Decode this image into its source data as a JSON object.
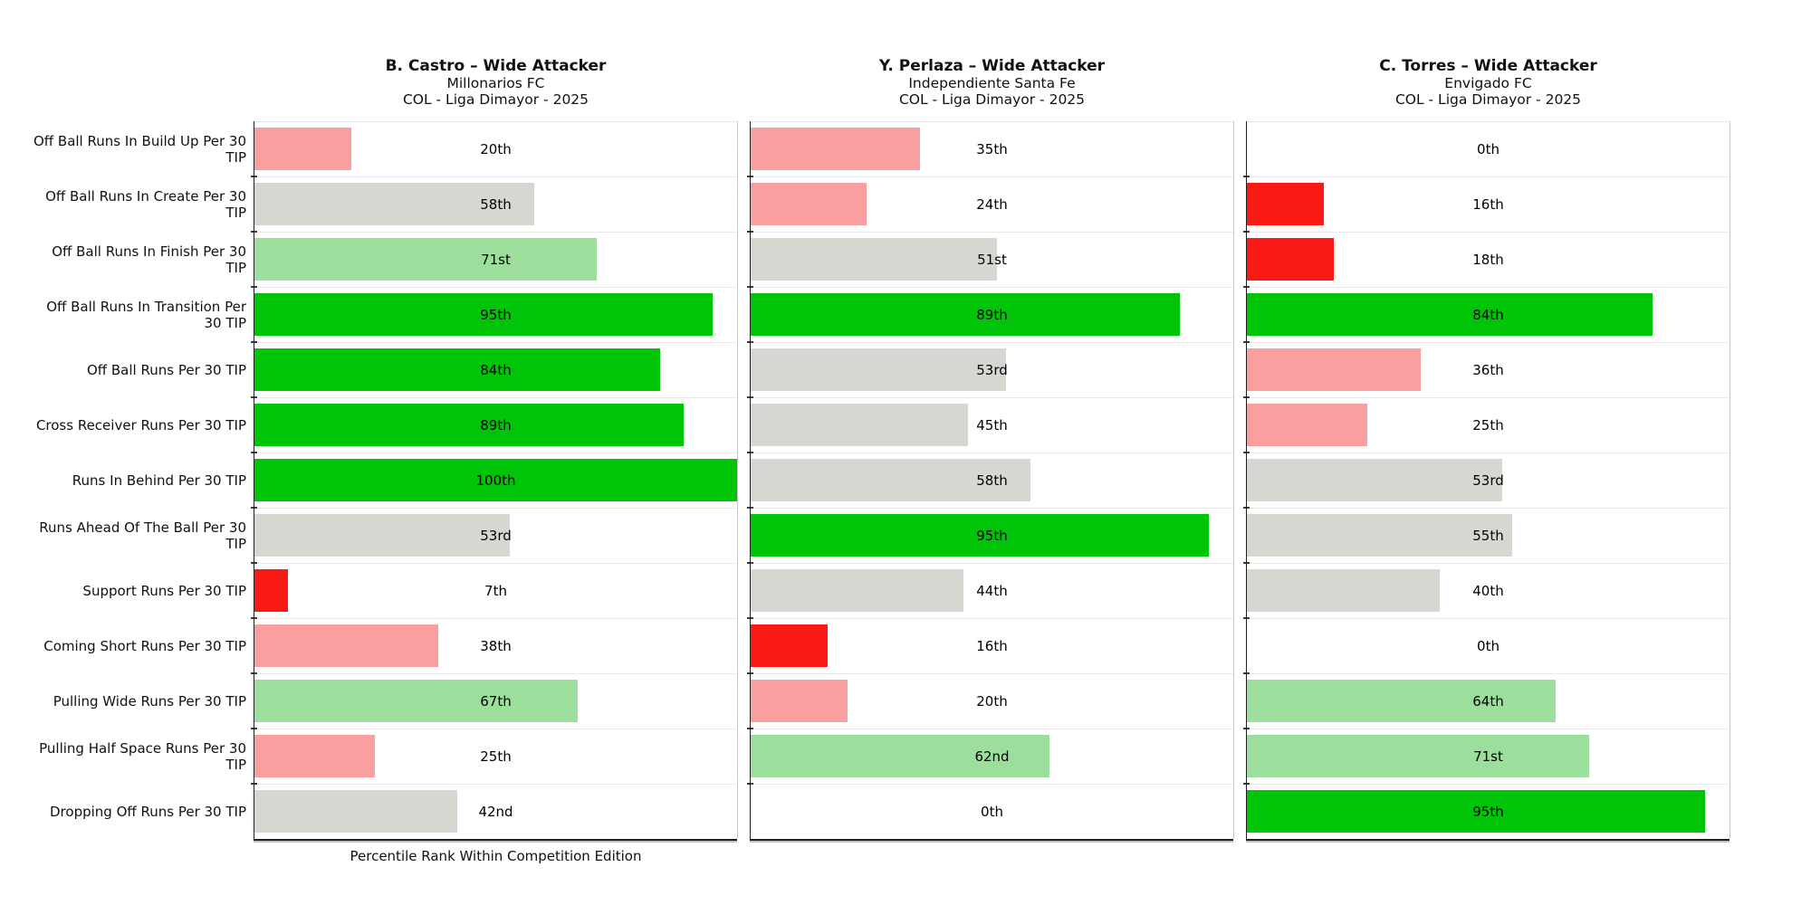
{
  "figure": {
    "xlabel": "Percentile Rank Within Competition Edition"
  },
  "colors": {
    "red": "#F91A15",
    "pink": "#FA9FA0",
    "gray": "#D7D7D2",
    "lightgreen": "#9CDF9C",
    "green": "#00C408",
    "separator": "#E9E9E9",
    "spine": "#1F1F1F"
  },
  "chart_data": [
    {
      "type": "bar",
      "orientation": "horizontal",
      "title": "B. Castro – Wide Attacker",
      "team": "Millonarios FC",
      "competition": "COL - Liga Dimayor - 2025",
      "xlabel": "Percentile Rank Within Competition Edition",
      "xlim": [
        0,
        100
      ],
      "categories": [
        "Off Ball Runs In Build Up Per 30 TIP",
        "Off Ball Runs In Create Per 30 TIP",
        "Off Ball Runs In Finish Per 30 TIP",
        "Off Ball Runs In Transition Per 30 TIP",
        "Off Ball Runs Per 30 TIP",
        "Cross Receiver Runs Per 30 TIP",
        "Runs In Behind Per 30 TIP",
        "Runs Ahead Of The Ball Per 30 TIP",
        "Support Runs Per 30 TIP",
        "Coming Short Runs Per 30 TIP",
        "Pulling Wide Runs Per 30 TIP",
        "Pulling Half Space Runs Per 30 TIP",
        "Dropping Off Runs Per 30 TIP"
      ],
      "values": [
        20,
        58,
        71,
        95,
        84,
        89,
        100,
        53,
        7,
        38,
        67,
        25,
        42
      ],
      "value_labels": [
        "20th",
        "58th",
        "71st",
        "95th",
        "84th",
        "89th",
        "100th",
        "53rd",
        "7th",
        "38th",
        "67th",
        "25th",
        "42nd"
      ],
      "bar_color_keys": [
        "pink",
        "gray",
        "lightgreen",
        "green",
        "green",
        "green",
        "green",
        "gray",
        "red",
        "pink",
        "lightgreen",
        "pink",
        "gray"
      ]
    },
    {
      "type": "bar",
      "orientation": "horizontal",
      "title": "Y. Perlaza – Wide Attacker",
      "team": "Independiente Santa Fe",
      "competition": "COL - Liga Dimayor - 2025",
      "xlabel": "",
      "xlim": [
        0,
        100
      ],
      "categories": [
        "Off Ball Runs In Build Up Per 30 TIP",
        "Off Ball Runs In Create Per 30 TIP",
        "Off Ball Runs In Finish Per 30 TIP",
        "Off Ball Runs In Transition Per 30 TIP",
        "Off Ball Runs Per 30 TIP",
        "Cross Receiver Runs Per 30 TIP",
        "Runs In Behind Per 30 TIP",
        "Runs Ahead Of The Ball Per 30 TIP",
        "Support Runs Per 30 TIP",
        "Coming Short Runs Per 30 TIP",
        "Pulling Wide Runs Per 30 TIP",
        "Pulling Half Space Runs Per 30 TIP",
        "Dropping Off Runs Per 30 TIP"
      ],
      "values": [
        35,
        24,
        51,
        89,
        53,
        45,
        58,
        95,
        44,
        16,
        20,
        62,
        0
      ],
      "value_labels": [
        "35th",
        "24th",
        "51st",
        "89th",
        "53rd",
        "45th",
        "58th",
        "95th",
        "44th",
        "16th",
        "20th",
        "62nd",
        "0th"
      ],
      "bar_color_keys": [
        "pink",
        "pink",
        "gray",
        "green",
        "gray",
        "gray",
        "gray",
        "green",
        "gray",
        "red",
        "pink",
        "lightgreen",
        "red"
      ]
    },
    {
      "type": "bar",
      "orientation": "horizontal",
      "title": "C. Torres – Wide Attacker",
      "team": "Envigado FC",
      "competition": "COL - Liga Dimayor - 2025",
      "xlabel": "",
      "xlim": [
        0,
        100
      ],
      "categories": [
        "Off Ball Runs In Build Up Per 30 TIP",
        "Off Ball Runs In Create Per 30 TIP",
        "Off Ball Runs In Finish Per 30 TIP",
        "Off Ball Runs In Transition Per 30 TIP",
        "Off Ball Runs Per 30 TIP",
        "Cross Receiver Runs Per 30 TIP",
        "Runs In Behind Per 30 TIP",
        "Runs Ahead Of The Ball Per 30 TIP",
        "Support Runs Per 30 TIP",
        "Coming Short Runs Per 30 TIP",
        "Pulling Wide Runs Per 30 TIP",
        "Pulling Half Space Runs Per 30 TIP",
        "Dropping Off Runs Per 30 TIP"
      ],
      "values": [
        0,
        16,
        18,
        84,
        36,
        25,
        53,
        55,
        40,
        0,
        64,
        71,
        95
      ],
      "value_labels": [
        "0th",
        "16th",
        "18th",
        "84th",
        "36th",
        "25th",
        "53rd",
        "55th",
        "40th",
        "0th",
        "64th",
        "71st",
        "95th"
      ],
      "bar_color_keys": [
        "red",
        "red",
        "red",
        "green",
        "pink",
        "pink",
        "gray",
        "gray",
        "gray",
        "red",
        "lightgreen",
        "lightgreen",
        "green"
      ]
    }
  ]
}
